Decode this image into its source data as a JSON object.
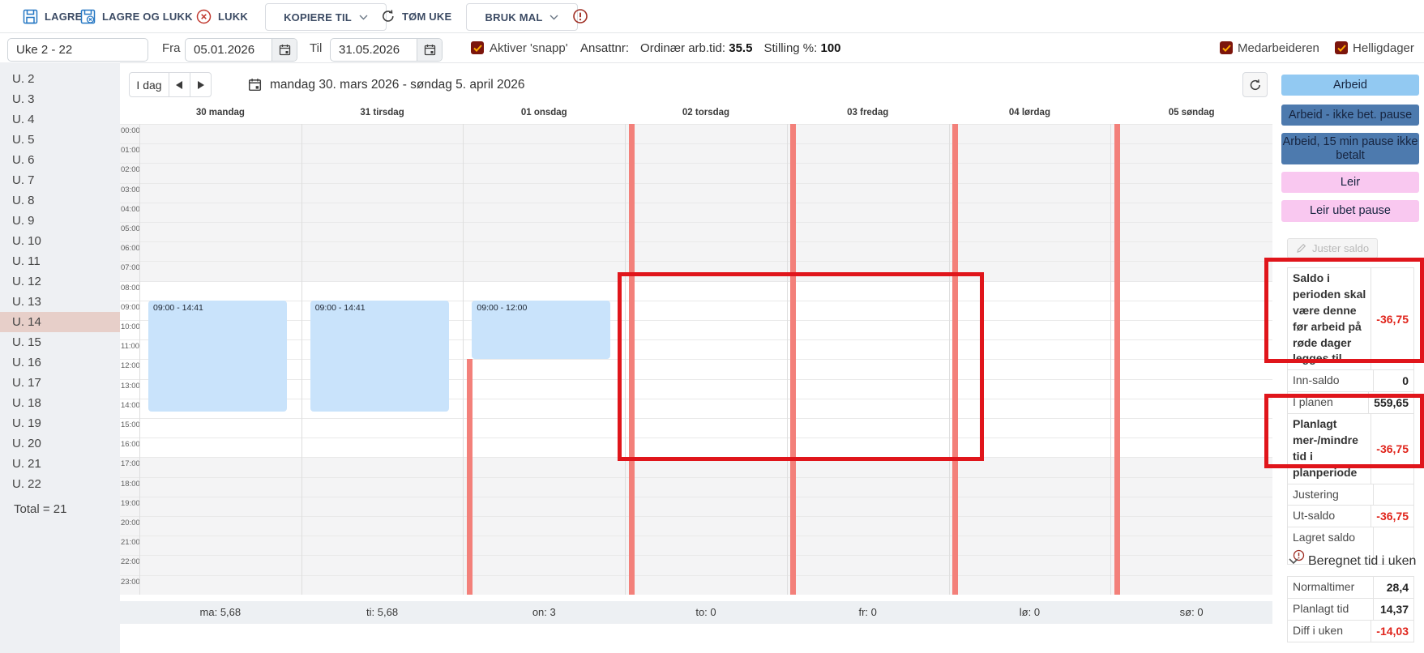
{
  "toolbar": {
    "save_label": "LAGRE",
    "save_close_label": "LAGRE OG LUKK",
    "close_label": "LUKK",
    "copy_to_label": "KOPIERE TIL",
    "clear_week_label": "TØM UKE",
    "use_template_label": "BRUK MAL"
  },
  "filters": {
    "week_range_value": "Uke 2 - 22",
    "from_label": "Fra",
    "from_date": "05.01.2026",
    "to_label": "Til",
    "to_date": "31.05.2026",
    "snap_label": "Aktiver 'snapp'",
    "employee_no_label": "Ansattnr:",
    "ordinary_time_label": "Ordinær arb.tid:",
    "ordinary_time_value": "35.5",
    "position_pct_label": "Stilling %:",
    "position_pct_value": "100",
    "employee_checkbox_label": "Medarbeideren",
    "holidays_checkbox_label": "Helligdager"
  },
  "week_sidebar": {
    "items": [
      "U. 2",
      "U. 3",
      "U. 4",
      "U. 5",
      "U. 6",
      "U. 7",
      "U. 8",
      "U. 9",
      "U. 10",
      "U. 11",
      "U. 12",
      "U. 13",
      "U. 14",
      "U. 15",
      "U. 16",
      "U. 17",
      "U. 18",
      "U. 19",
      "U. 20",
      "U. 21",
      "U. 22"
    ],
    "selected": "U. 14",
    "total_label": "Total = 21"
  },
  "calendar": {
    "today_label": "I dag",
    "title": "mandag 30. mars 2026 - søndag 5. april 2026",
    "day_headers": [
      "30 mandag",
      "31 tirsdag",
      "01 onsdag",
      "02 torsdag",
      "03 fredag",
      "04 lørdag",
      "05 søndag"
    ],
    "hours": [
      "00:00",
      "01:00",
      "02:00",
      "03:00",
      "04:00",
      "05:00",
      "06:00",
      "07:00",
      "08:00",
      "09:00",
      "10:00",
      "11:00",
      "12:00",
      "13:00",
      "14:00",
      "15:00",
      "16:00",
      "17:00",
      "18:00",
      "19:00",
      "20:00",
      "21:00",
      "22:00",
      "23:00"
    ],
    "events": [
      {
        "day": 0,
        "label": "09:00 - 14:41",
        "start": 9,
        "end": 14.683
      },
      {
        "day": 1,
        "label": "09:00 - 14:41",
        "start": 9,
        "end": 14.683
      },
      {
        "day": 2,
        "label": "09:00 - 12:00",
        "start": 9,
        "end": 12
      }
    ],
    "red_day_stripes": [
      {
        "day": 2,
        "start": 12
      },
      {
        "day": 3,
        "start": 0
      },
      {
        "day": 4,
        "start": 0
      },
      {
        "day": 5,
        "start": 0
      },
      {
        "day": 6,
        "start": 0
      }
    ],
    "day_totals": [
      "ma: 5,68",
      "ti: 5,68",
      "on: 3",
      "to: 0",
      "fr: 0",
      "lø: 0",
      "sø: 0"
    ]
  },
  "shift_types": [
    {
      "label": "Arbeid",
      "bg": "#92c9f2"
    },
    {
      "label": "Arbeid - ikke bet. pause",
      "bg": "#4d7aae"
    },
    {
      "label": "Arbeid, 15 min pause ikke betalt",
      "bg": "#4d7aae"
    },
    {
      "label": "Leir",
      "bg": "#f9c8f0"
    },
    {
      "label": "Leir ubet pause",
      "bg": "#f9c8f0"
    }
  ],
  "saldo_panel": {
    "adjust_button_label": "Juster saldo",
    "rows": [
      {
        "label": "Saldo i perioden skal være denne før arbeid på røde dager legges til",
        "value": "-36,75",
        "value_red": true,
        "label_bold": true
      },
      {
        "label": "Inn-saldo",
        "value": "0"
      },
      {
        "label": "I planen",
        "value": "559,65"
      },
      {
        "label": "Planlagt mer-/mindre tid i planperiode",
        "value": "-36,75",
        "value_red": true,
        "label_bold": true
      },
      {
        "label": "Justering",
        "value": ""
      },
      {
        "label": "Ut-saldo",
        "value": "-36,75",
        "value_red": true
      },
      {
        "label": "Lagret saldo",
        "value": "",
        "alert_icon": true
      }
    ]
  },
  "computed_panel": {
    "header": "Beregnet tid i uken",
    "rows": [
      {
        "label": "Normaltimer",
        "value": "28,4"
      },
      {
        "label": "Planlagt tid",
        "value": "14,37"
      },
      {
        "label": "Diff i uken",
        "value": "-14,03",
        "value_red": true
      }
    ]
  },
  "colors": {
    "event_bg": "#c9e3fb",
    "red_stripe": "#f3807a",
    "annotation_red": "#e0151b",
    "checkbox_bg": "#7c150c",
    "checkbox_check": "#ffaa00",
    "negative_value": "#e0241b",
    "selected_week_bg": "#e7cfc9"
  }
}
